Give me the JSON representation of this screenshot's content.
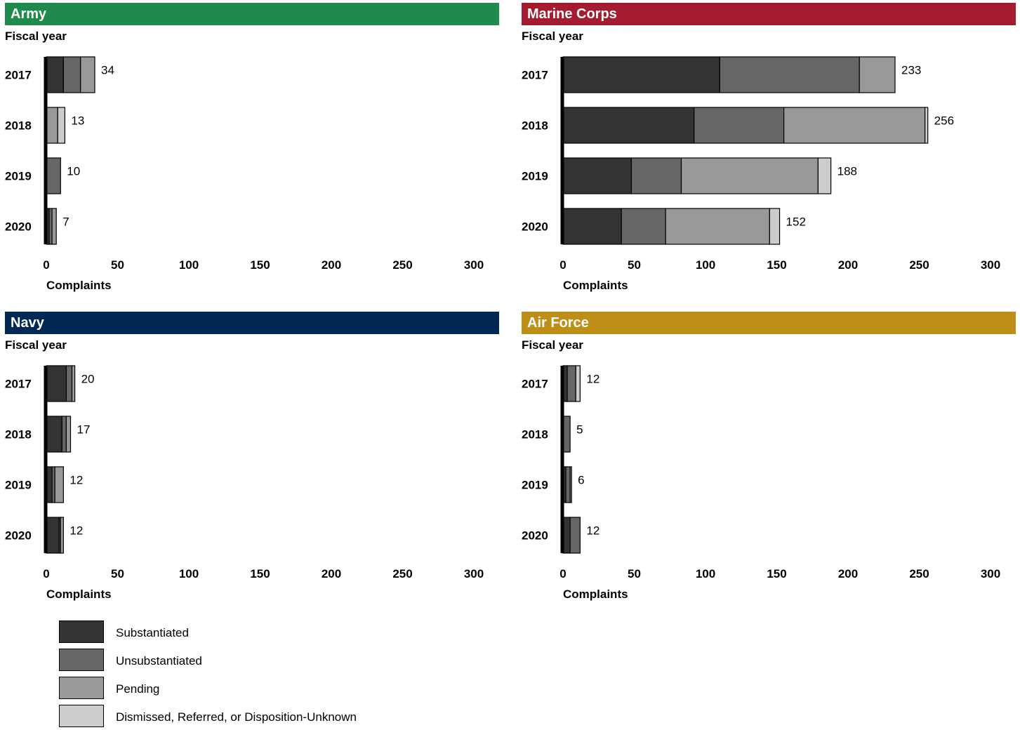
{
  "legend": {
    "items": [
      {
        "label": "Substantiated",
        "color": "#333333"
      },
      {
        "label": "Unsubstantiated",
        "color": "#666666"
      },
      {
        "label": "Pending",
        "color": "#999999"
      },
      {
        "label": "Dismissed, Referred, or Disposition-Unknown",
        "color": "#cccccc"
      }
    ]
  },
  "chart_data": [
    {
      "type": "bar",
      "orientation": "horizontal",
      "stacked": true,
      "title": "Army",
      "header_color": "#1e8a4c",
      "ylabel": "Fiscal year",
      "xlabel": "Complaints",
      "xlim": [
        0,
        300
      ],
      "xticks": [
        "0",
        "50",
        "100",
        "150",
        "200",
        "250",
        "300"
      ],
      "categories": [
        "2017",
        "2018",
        "2019",
        "2020"
      ],
      "series": [
        {
          "name": "Substantiated",
          "values": [
            12,
            0,
            0,
            2
          ]
        },
        {
          "name": "Unsubstantiated",
          "values": [
            12,
            0,
            10,
            2
          ]
        },
        {
          "name": "Pending",
          "values": [
            10,
            8,
            0,
            3
          ]
        },
        {
          "name": "Dismissed, Referred, or Disposition-Unknown",
          "values": [
            0,
            5,
            0,
            0
          ]
        }
      ],
      "totals": [
        "34",
        "13",
        "10",
        "7"
      ]
    },
    {
      "type": "bar",
      "orientation": "horizontal",
      "stacked": true,
      "title": "Marine Corps",
      "header_color": "#a51c30",
      "ylabel": "Fiscal year",
      "xlabel": "Complaints",
      "xlim": [
        0,
        300
      ],
      "xticks": [
        "0",
        "50",
        "100",
        "150",
        "200",
        "250",
        "300"
      ],
      "categories": [
        "2017",
        "2018",
        "2019",
        "2020"
      ],
      "series": [
        {
          "name": "Substantiated",
          "values": [
            110,
            92,
            48,
            41
          ]
        },
        {
          "name": "Unsubstantiated",
          "values": [
            98,
            63,
            35,
            31
          ]
        },
        {
          "name": "Pending",
          "values": [
            25,
            99,
            96,
            73
          ]
        },
        {
          "name": "Dismissed, Referred, or Disposition-Unknown",
          "values": [
            0,
            2,
            9,
            7
          ]
        }
      ],
      "totals": [
        "233",
        "256",
        "188",
        "152"
      ]
    },
    {
      "type": "bar",
      "orientation": "horizontal",
      "stacked": true,
      "title": "Navy",
      "header_color": "#002855",
      "ylabel": "Fiscal year",
      "xlabel": "Complaints",
      "xlim": [
        0,
        300
      ],
      "xticks": [
        "0",
        "50",
        "100",
        "150",
        "200",
        "250",
        "300"
      ],
      "categories": [
        "2017",
        "2018",
        "2019",
        "2020"
      ],
      "series": [
        {
          "name": "Substantiated",
          "values": [
            14,
            11,
            4,
            9
          ]
        },
        {
          "name": "Unsubstantiated",
          "values": [
            4,
            3,
            2,
            1
          ]
        },
        {
          "name": "Pending",
          "values": [
            2,
            3,
            6,
            2
          ]
        },
        {
          "name": "Dismissed, Referred, or Disposition-Unknown",
          "values": [
            0,
            0,
            0,
            0
          ]
        }
      ],
      "totals": [
        "20",
        "17",
        "12",
        "12"
      ]
    },
    {
      "type": "bar",
      "orientation": "horizontal",
      "stacked": true,
      "title": "Air Force",
      "header_color": "#bd8f16",
      "ylabel": "Fiscal year",
      "xlabel": "Complaints",
      "xlim": [
        0,
        300
      ],
      "xticks": [
        "0",
        "50",
        "100",
        "150",
        "200",
        "250",
        "300"
      ],
      "categories": [
        "2017",
        "2018",
        "2019",
        "2020"
      ],
      "series": [
        {
          "name": "Substantiated",
          "values": [
            3,
            0,
            2,
            5
          ]
        },
        {
          "name": "Unsubstantiated",
          "values": [
            6,
            5,
            3,
            7
          ]
        },
        {
          "name": "Pending",
          "values": [
            0,
            0,
            1,
            0
          ]
        },
        {
          "name": "Dismissed, Referred, or Disposition-Unknown",
          "values": [
            3,
            0,
            0,
            0
          ]
        }
      ],
      "totals": [
        "12",
        "5",
        "6",
        "12"
      ]
    }
  ]
}
